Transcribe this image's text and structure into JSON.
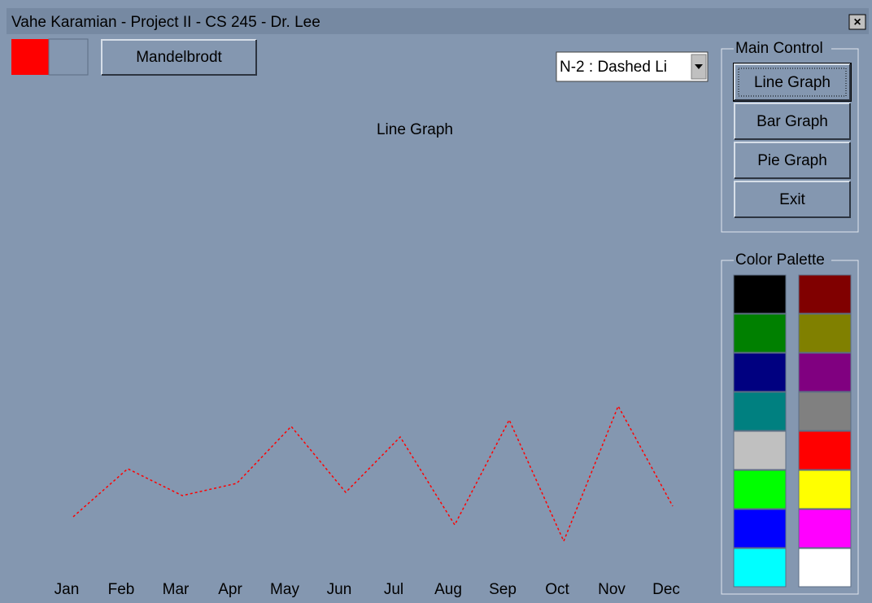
{
  "window": {
    "title": "Vahe Karamian - Project II - CS 245 - Dr. Lee",
    "close": "×"
  },
  "toolbar": {
    "button": "Mandelbrodt",
    "dropdown": "N-2 : Dashed Li"
  },
  "main_control": {
    "title": "Main Control",
    "buttons": [
      "Line Graph",
      "Bar Graph",
      "Pie Graph",
      "Exit"
    ]
  },
  "color_palette": {
    "title": "Color Palette",
    "left": [
      "#000000",
      "#008000",
      "#000080",
      "#008080",
      "#c0c0c0",
      "#00ff00",
      "#0000ff",
      "#00ffff"
    ],
    "right": [
      "#800000",
      "#808000",
      "#800080",
      "#808080",
      "#ff0000",
      "#ffff00",
      "#ff00ff",
      "#ffffff"
    ]
  },
  "chart_data": {
    "type": "line",
    "title": "Line Graph",
    "categories": [
      "Jan",
      "Feb",
      "Mar",
      "Apr",
      "May",
      "Jun",
      "Jul",
      "Aug",
      "Sep",
      "Oct",
      "Nov",
      "Dec"
    ],
    "values": [
      65,
      124,
      91,
      106,
      176,
      95,
      163,
      55,
      184,
      35,
      201,
      78
    ],
    "color": "#ff0000",
    "line_style": "dashed"
  }
}
